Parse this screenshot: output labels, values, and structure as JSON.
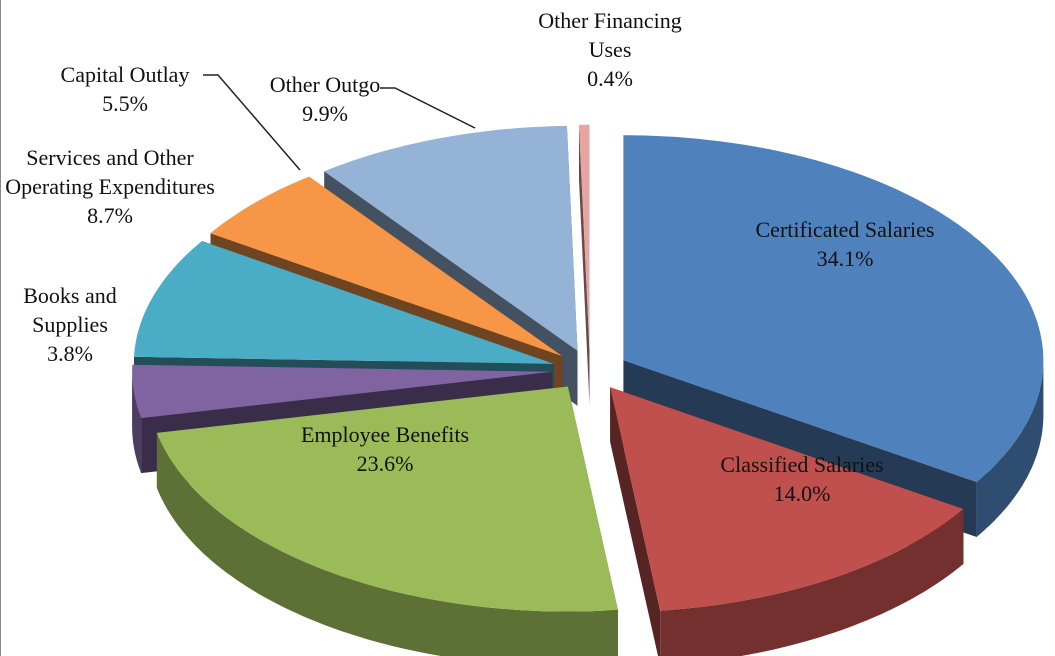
{
  "chart_data": {
    "type": "pie3d",
    "categories": [
      "Certificated Salaries",
      "Classified Salaries",
      "Employee Benefits",
      "Books and Supplies",
      "Services and Other Operating Expenditures",
      "Capital Outlay",
      "Other Outgo",
      "Other Financing Uses"
    ],
    "values": [
      34.1,
      14.0,
      23.6,
      3.8,
      8.7,
      5.5,
      9.9,
      0.4
    ],
    "value_labels": [
      "34.1%",
      "14.0%",
      "23.6%",
      "3.8%",
      "8.7%",
      "5.5%",
      "9.9%",
      "0.4%"
    ],
    "colors": [
      "#4f81bd",
      "#c0504d",
      "#9bbb59",
      "#8064a2",
      "#4bacc6",
      "#f79646",
      "#95b3d7",
      "#e6a5a3"
    ]
  }
}
